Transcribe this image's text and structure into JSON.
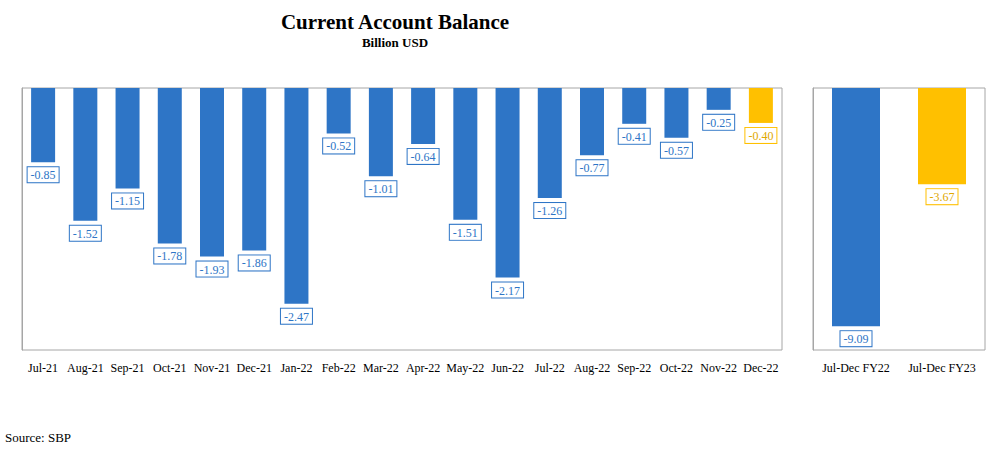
{
  "chart_data": [
    {
      "type": "bar",
      "title": "Current Account Balance",
      "subtitle": "Billion USD",
      "source": "Source: SBP",
      "categories": [
        "Jul-21",
        "Aug-21",
        "Sep-21",
        "Oct-21",
        "Nov-21",
        "Dec-21",
        "Jan-22",
        "Feb-22",
        "Mar-22",
        "Apr-22",
        "May-22",
        "Jun-22",
        "Jul-22",
        "Aug-22",
        "Sep-22",
        "Oct-22",
        "Nov-22",
        "Dec-22"
      ],
      "values": [
        -0.85,
        -1.52,
        -1.15,
        -1.78,
        -1.93,
        -1.86,
        -2.47,
        -0.52,
        -1.01,
        -0.64,
        -1.51,
        -2.17,
        -1.26,
        -0.77,
        -0.41,
        -0.57,
        -0.25,
        -0.4
      ],
      "value_labels": [
        "-0.85",
        "-1.52",
        "-1.15",
        "-1.78",
        "-1.93",
        "-1.86",
        "-2.47",
        "-0.52",
        "-1.01",
        "-0.64",
        "-1.51",
        "-2.17",
        "-1.26",
        "-0.77",
        "-0.41",
        "-0.57",
        "-0.25",
        "-0.40"
      ],
      "colors": [
        "#2e75c6",
        "#2e75c6",
        "#2e75c6",
        "#2e75c6",
        "#2e75c6",
        "#2e75c6",
        "#2e75c6",
        "#2e75c6",
        "#2e75c6",
        "#2e75c6",
        "#2e75c6",
        "#2e75c6",
        "#2e75c6",
        "#2e75c6",
        "#2e75c6",
        "#2e75c6",
        "#2e75c6",
        "#ffc000"
      ],
      "ylim": [
        -3,
        0
      ],
      "grid": false,
      "data_labels": true,
      "tick_labels": "x"
    },
    {
      "type": "bar",
      "categories": [
        "Jul-Dec FY22",
        "Jul-Dec FY23"
      ],
      "values": [
        -9.09,
        -3.67
      ],
      "value_labels": [
        "-9.09",
        "-3.67"
      ],
      "colors": [
        "#2e75c6",
        "#ffc000"
      ],
      "ylim": [
        -10,
        0
      ],
      "grid": false,
      "data_labels": true,
      "tick_labels": "x"
    }
  ]
}
